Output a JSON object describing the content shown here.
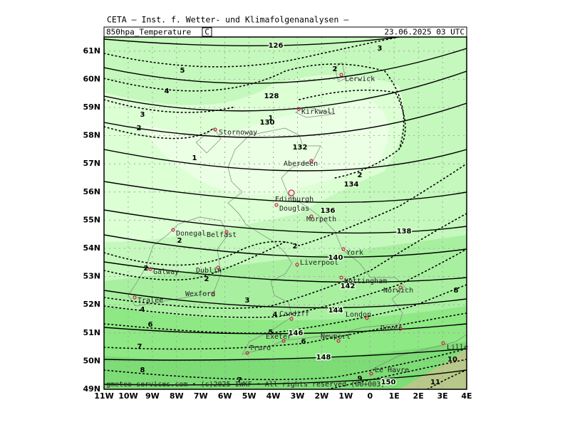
{
  "header": {
    "title": "CETA — Inst. f. Wetter- und Klimafolgenanalysen —",
    "field": "850hpa_Temperature",
    "unit": "C",
    "valid": "23.06.2025 03 UTC"
  },
  "map": {
    "lon_labels": [
      "11W",
      "10W",
      "9W",
      "8W",
      "7W",
      "6W",
      "5W",
      "4W",
      "3W",
      "2W",
      "1W",
      "0",
      "1E",
      "2E",
      "3E",
      "4E"
    ],
    "lat_labels": [
      "49N",
      "50N",
      "51N",
      "52N",
      "53N",
      "54N",
      "55N",
      "56N",
      "57N",
      "58N",
      "59N",
      "60N",
      "61N"
    ],
    "cities": [
      "Lerwick",
      "Kirkwall",
      "Stornoway",
      "Aberdeen",
      "Edinburgh",
      "Douglas",
      "Morpeth",
      "Donegal",
      "Belfast",
      "York",
      "Liverpool",
      "Galway",
      "Dublin",
      "Nottingham",
      "Norwich",
      "Wexford",
      "Tralee",
      "Cardiff",
      "London",
      "Dover",
      "Exeter",
      "Newport",
      "Lille",
      "Truro",
      "Le Havre"
    ],
    "height_labels": [
      "126",
      "128",
      "130",
      "132",
      "134",
      "136",
      "138",
      "140",
      "142",
      "144",
      "146",
      "148",
      "150"
    ],
    "temp_labels": [
      "3",
      "5",
      "4",
      "3",
      "2",
      "1",
      "2",
      "1",
      "2",
      "2",
      "2",
      "2",
      "2",
      "3",
      "4",
      "4",
      "6",
      "5",
      "6",
      "7",
      "8",
      "7",
      "9",
      "8",
      "10",
      "11"
    ],
    "footer": "gmeteo-services.com • (c)2025 IWKF • All rights reserved (00+003)"
  }
}
